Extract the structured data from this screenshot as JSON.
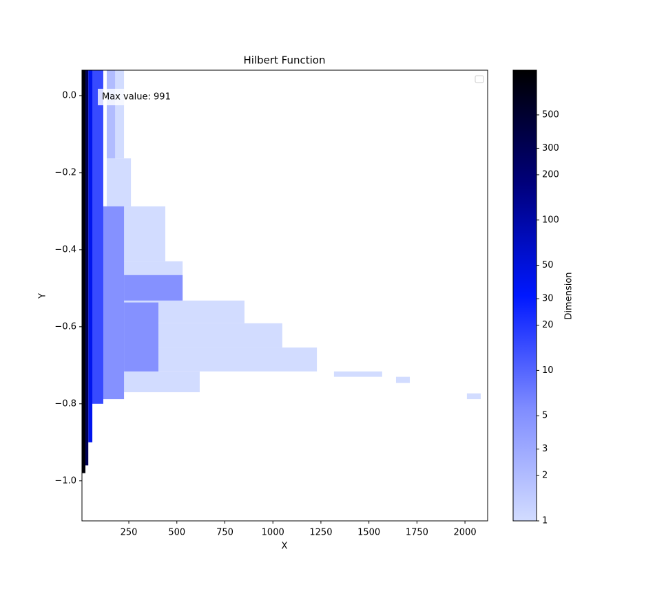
{
  "chart_data": {
    "type": "heatmap",
    "title": "Hilbert Function",
    "xlabel": "X",
    "ylabel": "Y",
    "colorbar_label": "Dimension",
    "annotation": "Max value: 991",
    "xlim": [
      6,
      2118
    ],
    "ylim": [
      -1.104,
      0.066
    ],
    "xticks": [
      250,
      500,
      750,
      1000,
      1250,
      1500,
      1750,
      2000
    ],
    "yticks": [
      {
        "value": 0,
        "label": "0.0"
      },
      {
        "value": -0.2,
        "label": "−0.2"
      },
      {
        "value": -0.4,
        "label": "−0.4"
      },
      {
        "value": -0.6,
        "label": "−0.6"
      },
      {
        "value": -0.8,
        "label": "−0.8"
      },
      {
        "value": -1.0,
        "label": "−1.0"
      }
    ],
    "clim": [
      1,
      991
    ],
    "color_scale": "log",
    "cticks": [
      1,
      2,
      3,
      5,
      10,
      20,
      30,
      50,
      100,
      200,
      300,
      500
    ],
    "colormap": [
      "#d2dcff",
      "#7f8cff",
      "#0018ff",
      "#00007a",
      "#000000"
    ],
    "cells": [
      {
        "x": [
          179,
          225
        ],
        "y": [
          0.066,
          -0.163
        ],
        "value": 1
      },
      {
        "x": [
          135,
          261
        ],
        "y": [
          -0.163,
          -0.2875
        ],
        "value": 1
      },
      {
        "x": [
          135,
          440
        ],
        "y": [
          -0.2875,
          -0.43
        ],
        "value": 1
      },
      {
        "x": [
          135,
          530
        ],
        "y": [
          -0.43,
          -0.532
        ],
        "value": 1
      },
      {
        "x": [
          135,
          852
        ],
        "y": [
          -0.532,
          -0.591
        ],
        "value": 1
      },
      {
        "x": [
          135,
          1049
        ],
        "y": [
          -0.591,
          -0.654
        ],
        "value": 1
      },
      {
        "x": [
          135,
          1229
        ],
        "y": [
          -0.654,
          -0.716
        ],
        "value": 1
      },
      {
        "x": [
          135,
          619
        ],
        "y": [
          -0.716,
          -0.77
        ],
        "value": 1
      },
      {
        "x": [
          1318,
          1569
        ],
        "y": [
          -0.716,
          -0.73
        ],
        "value": 1
      },
      {
        "x": [
          1641,
          1713
        ],
        "y": [
          -0.73,
          -0.746
        ],
        "value": 1
      },
      {
        "x": [
          2010,
          2082
        ],
        "y": [
          -0.773,
          -0.788
        ],
        "value": 1
      },
      {
        "x": [
          135,
          179
        ],
        "y": [
          0.066,
          -0.163
        ],
        "value": 2
      },
      {
        "x": [
          56,
          225
        ],
        "y": [
          -0.2875,
          -0.788
        ],
        "value": 5
      },
      {
        "x": [
          225,
          530
        ],
        "y": [
          -0.466,
          -0.532
        ],
        "value": 5
      },
      {
        "x": [
          225,
          404
        ],
        "y": [
          -0.537,
          -0.716
        ],
        "value": 5
      },
      {
        "x": [
          56,
          117
        ],
        "y": [
          0.066,
          -0.8
        ],
        "value": 15
      },
      {
        "x": [
          39,
          60
        ],
        "y": [
          0.066,
          -0.9
        ],
        "value": 40
      },
      {
        "x": [
          24,
          39
        ],
        "y": [
          0.066,
          -0.96
        ],
        "value": 300
      },
      {
        "x": [
          6,
          24
        ],
        "y": [
          0.066,
          -0.98
        ],
        "value": 900
      }
    ]
  }
}
